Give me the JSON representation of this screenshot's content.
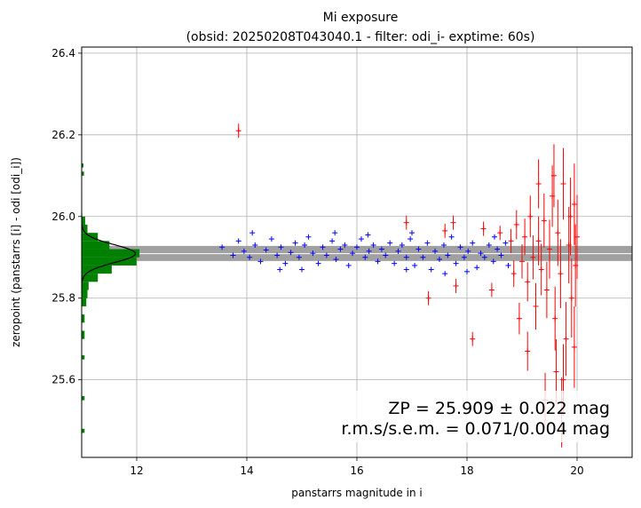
{
  "chart_data": {
    "type": "scatter",
    "title": "Mi exposure",
    "subtitle": "(obsid: 20250208T043040.1 - filter: odi_i- exptime: 60s)",
    "xlabel": "panstarrs magnitude in i",
    "ylabel": "zeropoint (panstarrs [i] - odi [odi_i])",
    "xlim": [
      11.0,
      21.0
    ],
    "ylim": [
      25.41,
      26.415
    ],
    "xticks": [
      12,
      14,
      16,
      18,
      20
    ],
    "yticks": [
      25.6,
      25.8,
      26.0,
      26.2,
      26.4
    ],
    "xtick_labels": [
      "12",
      "14",
      "16",
      "18",
      "20"
    ],
    "ytick_labels": [
      "25.6",
      "25.8",
      "26.0",
      "26.2",
      "26.4"
    ],
    "grid": true,
    "zeropoint": 25.909,
    "zp_band": [
      25.891,
      25.928
    ],
    "annotations": {
      "zp_line": "ZP = 25.909 ± 0.022 mag",
      "rms_line": "r.m.s/s.e.m. = 0.071/0.004 mag"
    },
    "colors": {
      "selected": "#0000ff",
      "rejected": "#ff0000",
      "histogram": "#008000",
      "band": "#a0a0a0",
      "fit_curve": "#000000",
      "grid": "#b0b0b0"
    },
    "series": [
      {
        "points": [
          [
            13.55,
            25.925
          ],
          [
            13.75,
            25.905
          ],
          [
            13.85,
            25.94
          ],
          [
            13.95,
            25.915
          ],
          [
            14.05,
            25.9
          ],
          [
            14.15,
            25.93
          ],
          [
            14.25,
            25.89
          ],
          [
            14.35,
            25.918
          ],
          [
            14.45,
            25.945
          ],
          [
            14.55,
            25.905
          ],
          [
            14.62,
            25.925
          ],
          [
            14.7,
            25.885
          ],
          [
            14.8,
            25.912
          ],
          [
            14.88,
            25.935
          ],
          [
            14.95,
            25.9
          ],
          [
            15.05,
            25.93
          ],
          [
            15.12,
            25.95
          ],
          [
            15.2,
            25.91
          ],
          [
            15.3,
            25.885
          ],
          [
            15.38,
            25.925
          ],
          [
            15.45,
            25.905
          ],
          [
            15.55,
            25.94
          ],
          [
            15.62,
            25.895
          ],
          [
            15.7,
            25.92
          ],
          [
            15.78,
            25.93
          ],
          [
            15.85,
            25.88
          ],
          [
            15.92,
            25.91
          ],
          [
            16.0,
            25.925
          ],
          [
            16.08,
            25.945
          ],
          [
            16.15,
            25.9
          ],
          [
            16.22,
            25.915
          ],
          [
            16.3,
            25.93
          ],
          [
            16.38,
            25.89
          ],
          [
            16.45,
            25.92
          ],
          [
            16.52,
            25.905
          ],
          [
            16.6,
            25.935
          ],
          [
            16.68,
            25.885
          ],
          [
            16.75,
            25.915
          ],
          [
            16.82,
            25.93
          ],
          [
            16.9,
            25.9
          ],
          [
            16.97,
            25.945
          ],
          [
            17.05,
            25.88
          ],
          [
            17.12,
            25.92
          ],
          [
            17.2,
            25.9
          ],
          [
            17.28,
            25.935
          ],
          [
            17.35,
            25.87
          ],
          [
            17.42,
            25.915
          ],
          [
            17.5,
            25.895
          ],
          [
            17.58,
            25.93
          ],
          [
            17.65,
            25.905
          ],
          [
            17.72,
            25.95
          ],
          [
            17.8,
            25.885
          ],
          [
            17.88,
            25.925
          ],
          [
            17.95,
            25.9
          ],
          [
            18.02,
            25.915
          ],
          [
            18.1,
            25.935
          ],
          [
            18.18,
            25.875
          ],
          [
            18.25,
            25.91
          ],
          [
            18.32,
            25.9
          ],
          [
            18.4,
            25.93
          ],
          [
            18.48,
            25.89
          ],
          [
            18.55,
            25.92
          ],
          [
            18.62,
            25.905
          ],
          [
            18.7,
            25.935
          ],
          [
            18.75,
            25.88
          ],
          [
            14.1,
            25.96
          ],
          [
            15.0,
            25.87
          ],
          [
            16.2,
            25.955
          ],
          [
            17.0,
            25.96
          ],
          [
            18.0,
            25.865
          ],
          [
            15.6,
            25.96
          ],
          [
            16.9,
            25.87
          ],
          [
            17.6,
            25.86
          ],
          [
            18.5,
            25.95
          ],
          [
            14.6,
            25.87
          ]
        ],
        "color": "#0000ff"
      },
      {
        "points": [
          [
            13.85,
            26.21
          ],
          [
            16.9,
            25.985
          ],
          [
            17.3,
            25.8
          ],
          [
            17.6,
            25.965
          ],
          [
            17.75,
            25.985
          ],
          [
            17.8,
            25.83
          ],
          [
            18.1,
            25.7
          ],
          [
            18.3,
            25.97
          ],
          [
            18.45,
            25.82
          ],
          [
            18.6,
            25.96
          ],
          [
            18.8,
            25.94
          ],
          [
            18.85,
            25.86
          ],
          [
            18.9,
            25.98
          ],
          [
            19.0,
            25.89
          ],
          [
            19.05,
            25.95
          ],
          [
            19.1,
            25.84
          ],
          [
            19.15,
            26.0
          ],
          [
            19.2,
            25.9
          ],
          [
            19.25,
            25.78
          ],
          [
            19.3,
            25.94
          ],
          [
            19.35,
            25.87
          ],
          [
            19.4,
            25.99
          ],
          [
            19.45,
            25.82
          ],
          [
            19.5,
            25.92
          ],
          [
            19.55,
            26.05
          ],
          [
            19.6,
            25.75
          ],
          [
            19.65,
            25.96
          ],
          [
            19.7,
            25.86
          ],
          [
            19.75,
            26.08
          ],
          [
            19.8,
            25.7
          ],
          [
            19.85,
            25.93
          ],
          [
            19.9,
            25.8
          ],
          [
            19.95,
            26.03
          ],
          [
            19.97,
            25.88
          ],
          [
            19.58,
            26.1
          ],
          [
            19.62,
            25.62
          ],
          [
            19.75,
            25.6
          ],
          [
            19.95,
            25.68
          ],
          [
            19.3,
            26.08
          ],
          [
            19.42,
            25.55
          ],
          [
            20.0,
            25.95
          ],
          [
            19.1,
            25.67
          ],
          [
            18.95,
            25.75
          ],
          [
            19.72,
            25.52
          ],
          [
            19.88,
            26.0
          ]
        ],
        "color": "#ff0000"
      }
    ],
    "histogram": {
      "bins": [
        [
          25.47,
          25.48,
          0.05
        ],
        [
          25.55,
          25.56,
          0.05
        ],
        [
          25.65,
          25.66,
          0.05
        ],
        [
          25.7,
          25.72,
          0.05
        ],
        [
          25.74,
          25.76,
          0.05
        ],
        [
          25.78,
          25.8,
          0.08
        ],
        [
          25.8,
          25.82,
          0.1
        ],
        [
          25.82,
          25.84,
          0.12
        ],
        [
          25.84,
          25.86,
          0.28
        ],
        [
          25.86,
          25.88,
          0.52
        ],
        [
          25.88,
          25.9,
          0.95
        ],
        [
          25.9,
          25.92,
          1.0
        ],
        [
          25.92,
          25.94,
          0.48
        ],
        [
          25.94,
          25.96,
          0.28
        ],
        [
          25.96,
          25.98,
          0.1
        ],
        [
          25.98,
          26.0,
          0.06
        ],
        [
          26.1,
          26.11,
          0.04
        ],
        [
          26.12,
          26.13,
          0.03
        ]
      ],
      "xmax_mag": 12.05
    }
  }
}
